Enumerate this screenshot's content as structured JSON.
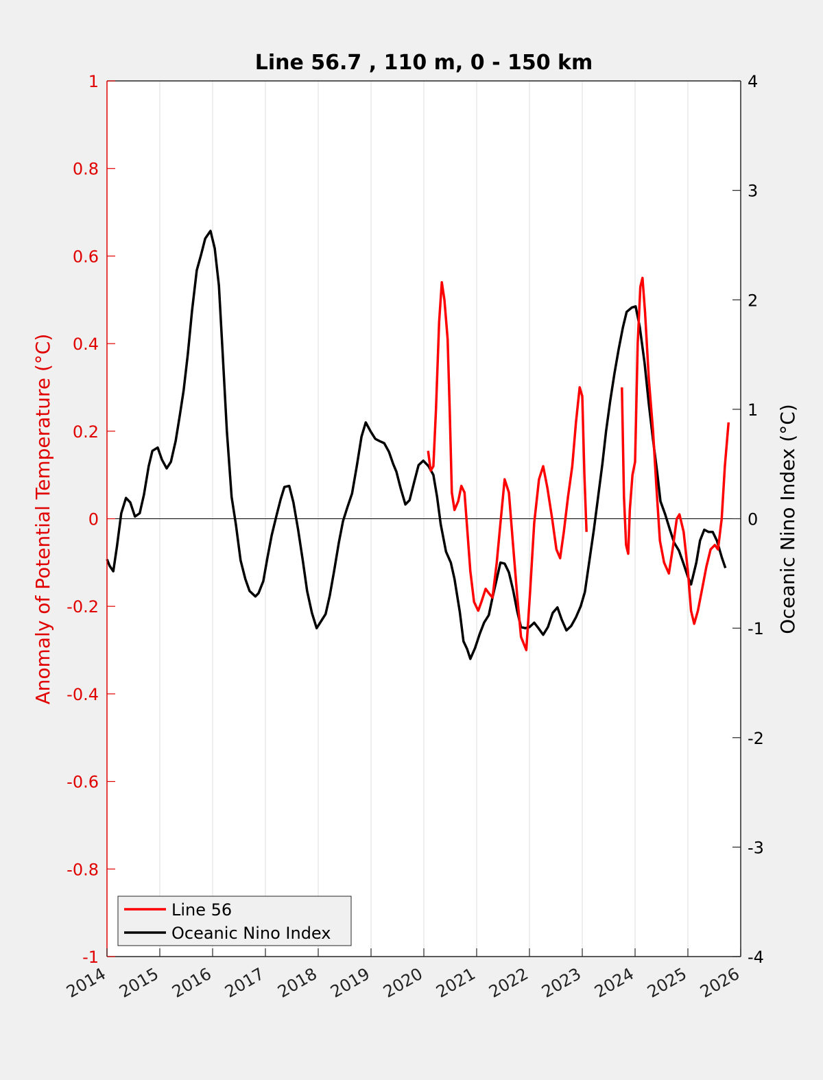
{
  "chart_data": {
    "type": "line",
    "title": "Line 56.7 , 110 m, 0 - 150 km",
    "xlabel": "",
    "ylabel_left": "Anomaly of Potential Temperature (°C)",
    "ylabel_right": "Oceanic Nino Index (°C)",
    "xlim": [
      2014,
      2026
    ],
    "ylim_left": [
      -1,
      1
    ],
    "ylim_right": [
      -4,
      4
    ],
    "x_ticks": [
      "2014",
      "2015",
      "2016",
      "2017",
      "2018",
      "2019",
      "2020",
      "2021",
      "2022",
      "2023",
      "2024",
      "2025",
      "2026"
    ],
    "y_ticks_left": [
      "1",
      "0.8",
      "0.6",
      "0.4",
      "0.2",
      "0",
      "-0.2",
      "-0.4",
      "-0.6",
      "-0.8",
      "-1"
    ],
    "y_ticks_right": [
      "4",
      "3",
      "2",
      "1",
      "0",
      "-1",
      "-2",
      "-3",
      "-4"
    ],
    "grid": "vertical",
    "legend_position": "bottom-left",
    "colors": {
      "line56": "#ff0000",
      "oni": "#000000",
      "left_axis": "#e00000",
      "right_axis": "#000000",
      "grid": "#dcdcdc",
      "background": "#f0f0f0",
      "plot_background": "#ffffff"
    },
    "series": [
      {
        "name": "Line 56",
        "axis": "left",
        "color": "#ff0000",
        "segments": [
          [
            [
              2020.08,
              0.155
            ],
            [
              2020.13,
              0.11
            ],
            [
              2020.18,
              0.12
            ],
            [
              2020.23,
              0.25
            ],
            [
              2020.29,
              0.45
            ],
            [
              2020.34,
              0.54
            ],
            [
              2020.39,
              0.5
            ],
            [
              2020.45,
              0.41
            ],
            [
              2020.49,
              0.25
            ],
            [
              2020.53,
              0.06
            ],
            [
              2020.58,
              0.02
            ],
            [
              2020.65,
              0.04
            ],
            [
              2020.71,
              0.075
            ],
            [
              2020.77,
              0.06
            ],
            [
              2020.82,
              -0.02
            ],
            [
              2020.88,
              -0.12
            ],
            [
              2020.95,
              -0.19
            ],
            [
              2021.03,
              -0.21
            ],
            [
              2021.09,
              -0.19
            ],
            [
              2021.17,
              -0.16
            ],
            [
              2021.23,
              -0.17
            ],
            [
              2021.3,
              -0.18
            ],
            [
              2021.38,
              -0.1
            ],
            [
              2021.45,
              -0.01
            ],
            [
              2021.53,
              0.09
            ],
            [
              2021.61,
              0.06
            ],
            [
              2021.69,
              -0.06
            ],
            [
              2021.77,
              -0.18
            ],
            [
              2021.84,
              -0.27
            ],
            [
              2021.94,
              -0.3
            ],
            [
              2022.01,
              -0.17
            ],
            [
              2022.09,
              -0.01
            ],
            [
              2022.18,
              0.09
            ],
            [
              2022.26,
              0.12
            ],
            [
              2022.34,
              0.07
            ],
            [
              2022.43,
              0.0
            ],
            [
              2022.51,
              -0.07
            ],
            [
              2022.58,
              -0.09
            ],
            [
              2022.65,
              -0.03
            ],
            [
              2022.73,
              0.05
            ],
            [
              2022.81,
              0.12
            ],
            [
              2022.88,
              0.22
            ],
            [
              2022.95,
              0.3
            ],
            [
              2023.0,
              0.28
            ],
            [
              2023.04,
              0.1
            ],
            [
              2023.08,
              -0.03
            ]
          ],
          [
            [
              2023.75,
              0.3
            ],
            [
              2023.79,
              0.05
            ],
            [
              2023.83,
              -0.06
            ],
            [
              2023.87,
              -0.08
            ],
            [
              2023.9,
              0.02
            ],
            [
              2023.95,
              0.1
            ],
            [
              2024.0,
              0.13
            ],
            [
              2024.05,
              0.4
            ],
            [
              2024.1,
              0.53
            ],
            [
              2024.14,
              0.55
            ],
            [
              2024.19,
              0.47
            ],
            [
              2024.26,
              0.32
            ],
            [
              2024.34,
              0.2
            ],
            [
              2024.4,
              0.08
            ],
            [
              2024.47,
              -0.05
            ],
            [
              2024.55,
              -0.1
            ],
            [
              2024.64,
              -0.125
            ],
            [
              2024.71,
              -0.07
            ],
            [
              2024.79,
              0.0
            ],
            [
              2024.84,
              0.01
            ],
            [
              2024.92,
              -0.03
            ],
            [
              2025.0,
              -0.12
            ],
            [
              2025.06,
              -0.21
            ],
            [
              2025.12,
              -0.24
            ],
            [
              2025.19,
              -0.21
            ],
            [
              2025.27,
              -0.16
            ],
            [
              2025.35,
              -0.11
            ],
            [
              2025.43,
              -0.07
            ],
            [
              2025.51,
              -0.06
            ],
            [
              2025.57,
              -0.07
            ],
            [
              2025.64,
              0.0
            ],
            [
              2025.7,
              0.12
            ],
            [
              2025.77,
              0.22
            ]
          ]
        ]
      },
      {
        "name": "Oceanic Nino Index",
        "axis": "right",
        "color": "#000000",
        "segments": [
          [
            [
              2014.0,
              -0.37
            ],
            [
              2014.05,
              -0.43
            ],
            [
              2014.12,
              -0.48
            ],
            [
              2014.19,
              -0.25
            ],
            [
              2014.27,
              0.05
            ],
            [
              2014.36,
              0.19
            ],
            [
              2014.44,
              0.15
            ],
            [
              2014.53,
              0.02
            ],
            [
              2014.62,
              0.05
            ],
            [
              2014.7,
              0.22
            ],
            [
              2014.79,
              0.48
            ],
            [
              2014.86,
              0.62
            ],
            [
              2014.96,
              0.65
            ],
            [
              2015.04,
              0.54
            ],
            [
              2015.13,
              0.46
            ],
            [
              2015.21,
              0.52
            ],
            [
              2015.3,
              0.71
            ],
            [
              2015.38,
              0.95
            ],
            [
              2015.45,
              1.17
            ],
            [
              2015.53,
              1.5
            ],
            [
              2015.61,
              1.9
            ],
            [
              2015.7,
              2.27
            ],
            [
              2015.78,
              2.41
            ],
            [
              2015.86,
              2.56
            ],
            [
              2015.96,
              2.63
            ],
            [
              2016.04,
              2.47
            ],
            [
              2016.12,
              2.13
            ],
            [
              2016.19,
              1.52
            ],
            [
              2016.27,
              0.8
            ],
            [
              2016.36,
              0.2
            ],
            [
              2016.44,
              -0.05
            ],
            [
              2016.53,
              -0.38
            ],
            [
              2016.62,
              -0.55
            ],
            [
              2016.7,
              -0.66
            ],
            [
              2016.81,
              -0.71
            ],
            [
              2016.87,
              -0.68
            ],
            [
              2016.96,
              -0.57
            ],
            [
              2017.04,
              -0.35
            ],
            [
              2017.12,
              -0.15
            ],
            [
              2017.21,
              0.03
            ],
            [
              2017.29,
              0.18
            ],
            [
              2017.36,
              0.29
            ],
            [
              2017.45,
              0.3
            ],
            [
              2017.53,
              0.15
            ],
            [
              2017.62,
              -0.1
            ],
            [
              2017.71,
              -0.39
            ],
            [
              2017.79,
              -0.66
            ],
            [
              2017.88,
              -0.86
            ],
            [
              2017.97,
              -1.0
            ],
            [
              2018.05,
              -0.94
            ],
            [
              2018.14,
              -0.87
            ],
            [
              2018.22,
              -0.7
            ],
            [
              2018.3,
              -0.48
            ],
            [
              2018.39,
              -0.22
            ],
            [
              2018.47,
              -0.02
            ],
            [
              2018.55,
              0.1
            ],
            [
              2018.64,
              0.23
            ],
            [
              2018.73,
              0.48
            ],
            [
              2018.82,
              0.75
            ],
            [
              2018.9,
              0.88
            ],
            [
              2018.99,
              0.8
            ],
            [
              2019.08,
              0.73
            ],
            [
              2019.16,
              0.71
            ],
            [
              2019.25,
              0.69
            ],
            [
              2019.34,
              0.61
            ],
            [
              2019.42,
              0.5
            ],
            [
              2019.48,
              0.43
            ],
            [
              2019.56,
              0.28
            ],
            [
              2019.65,
              0.13
            ],
            [
              2019.73,
              0.17
            ],
            [
              2019.82,
              0.34
            ],
            [
              2019.9,
              0.49
            ],
            [
              2019.99,
              0.53
            ],
            [
              2020.09,
              0.48
            ],
            [
              2020.18,
              0.4
            ],
            [
              2020.25,
              0.2
            ],
            [
              2020.32,
              -0.05
            ],
            [
              2020.42,
              -0.3
            ],
            [
              2020.51,
              -0.4
            ],
            [
              2020.58,
              -0.55
            ],
            [
              2020.68,
              -0.85
            ],
            [
              2020.75,
              -1.12
            ],
            [
              2020.82,
              -1.19
            ],
            [
              2020.88,
              -1.28
            ],
            [
              2020.97,
              -1.18
            ],
            [
              2021.06,
              -1.05
            ],
            [
              2021.14,
              -0.95
            ],
            [
              2021.23,
              -0.88
            ],
            [
              2021.3,
              -0.72
            ],
            [
              2021.38,
              -0.55
            ],
            [
              2021.45,
              -0.4
            ],
            [
              2021.53,
              -0.41
            ],
            [
              2021.61,
              -0.49
            ],
            [
              2021.69,
              -0.65
            ],
            [
              2021.77,
              -0.85
            ],
            [
              2021.84,
              -0.99
            ],
            [
              2021.92,
              -1.0
            ],
            [
              2022.0,
              -0.99
            ],
            [
              2022.09,
              -0.95
            ],
            [
              2022.17,
              -1.0
            ],
            [
              2022.26,
              -1.06
            ],
            [
              2022.35,
              -0.99
            ],
            [
              2022.44,
              -0.86
            ],
            [
              2022.53,
              -0.81
            ],
            [
              2022.61,
              -0.92
            ],
            [
              2022.7,
              -1.02
            ],
            [
              2022.79,
              -0.98
            ],
            [
              2022.88,
              -0.9
            ],
            [
              2022.97,
              -0.8
            ],
            [
              2023.05,
              -0.67
            ],
            [
              2023.13,
              -0.4
            ],
            [
              2023.22,
              -0.1
            ],
            [
              2023.3,
              0.2
            ],
            [
              2023.38,
              0.5
            ],
            [
              2023.45,
              0.8
            ],
            [
              2023.53,
              1.08
            ],
            [
              2023.61,
              1.33
            ],
            [
              2023.69,
              1.55
            ],
            [
              2023.77,
              1.75
            ],
            [
              2023.84,
              1.89
            ],
            [
              2023.94,
              1.93
            ],
            [
              2024.01,
              1.94
            ],
            [
              2024.09,
              1.75
            ],
            [
              2024.18,
              1.42
            ],
            [
              2024.26,
              1.05
            ],
            [
              2024.34,
              0.72
            ],
            [
              2024.42,
              0.42
            ],
            [
              2024.48,
              0.16
            ],
            [
              2024.57,
              0.04
            ],
            [
              2024.66,
              -0.1
            ],
            [
              2024.74,
              -0.22
            ],
            [
              2024.83,
              -0.29
            ],
            [
              2024.91,
              -0.4
            ],
            [
              2025.0,
              -0.53
            ],
            [
              2025.06,
              -0.6
            ],
            [
              2025.16,
              -0.4
            ],
            [
              2025.23,
              -0.2
            ],
            [
              2025.31,
              -0.1
            ],
            [
              2025.39,
              -0.12
            ],
            [
              2025.47,
              -0.12
            ],
            [
              2025.55,
              -0.2
            ],
            [
              2025.64,
              -0.35
            ],
            [
              2025.71,
              -0.45
            ]
          ]
        ]
      }
    ],
    "legend": [
      "Line 56",
      "Oceanic Nino Index"
    ]
  }
}
